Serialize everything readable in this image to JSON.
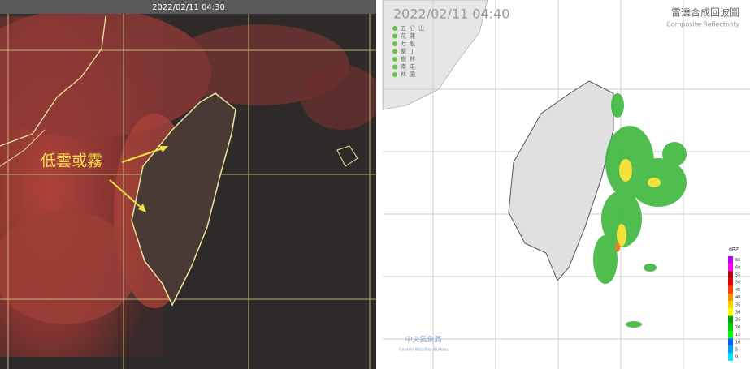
{
  "left_panel": {
    "timestamp": "2022/02/11 04:30",
    "annotation": "低雲或霧"
  },
  "right_panel": {
    "timestamp": "2022/02/11 04:40",
    "title": "雷達合成回波圖",
    "subtitle": "Composite Reflectivity",
    "stations": [
      "五分山",
      "花蓮",
      "七股",
      "墾丁",
      "樹林",
      "南屯",
      "林園"
    ],
    "legend": {
      "unit": "dBZ",
      "ticks": [
        65,
        60,
        55,
        50,
        45,
        40,
        35,
        30,
        25,
        20,
        15,
        10,
        5,
        0
      ]
    },
    "logo": {
      "name": "中央氣象局",
      "name_en": "Central Weather Bureau"
    }
  }
}
